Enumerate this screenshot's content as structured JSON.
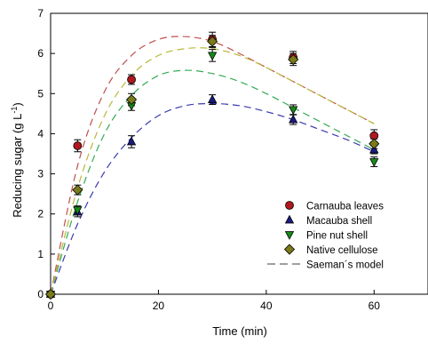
{
  "chart_data": {
    "type": "scatter",
    "xlabel": "Time (min)",
    "ylabel_main": "Reducing sugar (g L",
    "ylabel_sup": "-1",
    "ylabel_close": ")",
    "xlim": [
      0,
      70
    ],
    "ylim": [
      0,
      7
    ],
    "xticks": [
      0,
      20,
      40,
      60
    ],
    "yticks": [
      0,
      1,
      2,
      3,
      4,
      5,
      6,
      7
    ],
    "grid": false,
    "legend_position": "right-center",
    "x": [
      0,
      5,
      15,
      30,
      45,
      60
    ],
    "series": [
      {
        "name": "Carnauba leaves",
        "marker": "circle",
        "color": "#b0171f",
        "values": [
          0,
          3.7,
          5.35,
          6.35,
          5.9,
          3.95
        ],
        "errors": [
          0,
          0.15,
          0.12,
          0.18,
          0.15,
          0.15
        ]
      },
      {
        "name": "Macauba shell",
        "marker": "triangle-up",
        "color": "#1a1a80",
        "values": [
          0,
          2.05,
          3.8,
          4.85,
          4.35,
          3.6
        ],
        "errors": [
          0,
          0.12,
          0.15,
          0.12,
          0.12,
          0.1
        ]
      },
      {
        "name": "Pine nut shell",
        "marker": "triangle-down",
        "color": "#178a17",
        "values": [
          0,
          2.1,
          4.7,
          5.95,
          4.6,
          3.3
        ],
        "errors": [
          0,
          0.1,
          0.12,
          0.15,
          0.12,
          0.12
        ]
      },
      {
        "name": "Native cellulose",
        "marker": "diamond",
        "color": "#7a7a1a",
        "values": [
          0,
          2.6,
          4.85,
          6.3,
          5.85,
          3.75
        ],
        "errors": [
          0,
          0.12,
          0.15,
          0.15,
          0.15,
          0.12
        ]
      }
    ],
    "model": {
      "name": "Saeman´s model",
      "style": "dashed",
      "curves": [
        {
          "series": "Carnauba leaves",
          "color": "#c0504d",
          "x": [
            0,
            5,
            10,
            15,
            20,
            25,
            30,
            35,
            40,
            45,
            50,
            55,
            60
          ],
          "values": [
            0,
            3.2,
            5.05,
            5.95,
            6.35,
            6.42,
            6.3,
            6.0,
            5.65,
            5.3,
            4.95,
            4.6,
            4.25
          ]
        },
        {
          "series": "Macauba shell",
          "color": "#3a3ab0",
          "x": [
            0,
            5,
            10,
            15,
            20,
            25,
            30,
            35,
            40,
            45,
            50,
            55,
            60
          ],
          "values": [
            0,
            1.75,
            3.05,
            3.9,
            4.45,
            4.7,
            4.75,
            4.7,
            4.55,
            4.35,
            4.1,
            3.85,
            3.55
          ]
        },
        {
          "series": "Pine nut shell",
          "color": "#33aa55",
          "x": [
            0,
            5,
            10,
            15,
            20,
            25,
            30,
            35,
            40,
            45,
            50,
            55,
            60
          ],
          "values": [
            0,
            2.3,
            4.0,
            4.95,
            5.45,
            5.58,
            5.5,
            5.3,
            5.0,
            4.65,
            4.3,
            3.95,
            3.6
          ]
        },
        {
          "series": "Native cellulose",
          "color": "#b8b83a",
          "x": [
            0,
            5,
            10,
            15,
            20,
            25,
            30,
            35,
            40,
            45,
            50,
            55,
            60
          ],
          "values": [
            0,
            2.65,
            4.45,
            5.45,
            5.95,
            6.12,
            6.12,
            5.95,
            5.65,
            5.3,
            4.95,
            4.6,
            4.25
          ]
        }
      ]
    }
  }
}
